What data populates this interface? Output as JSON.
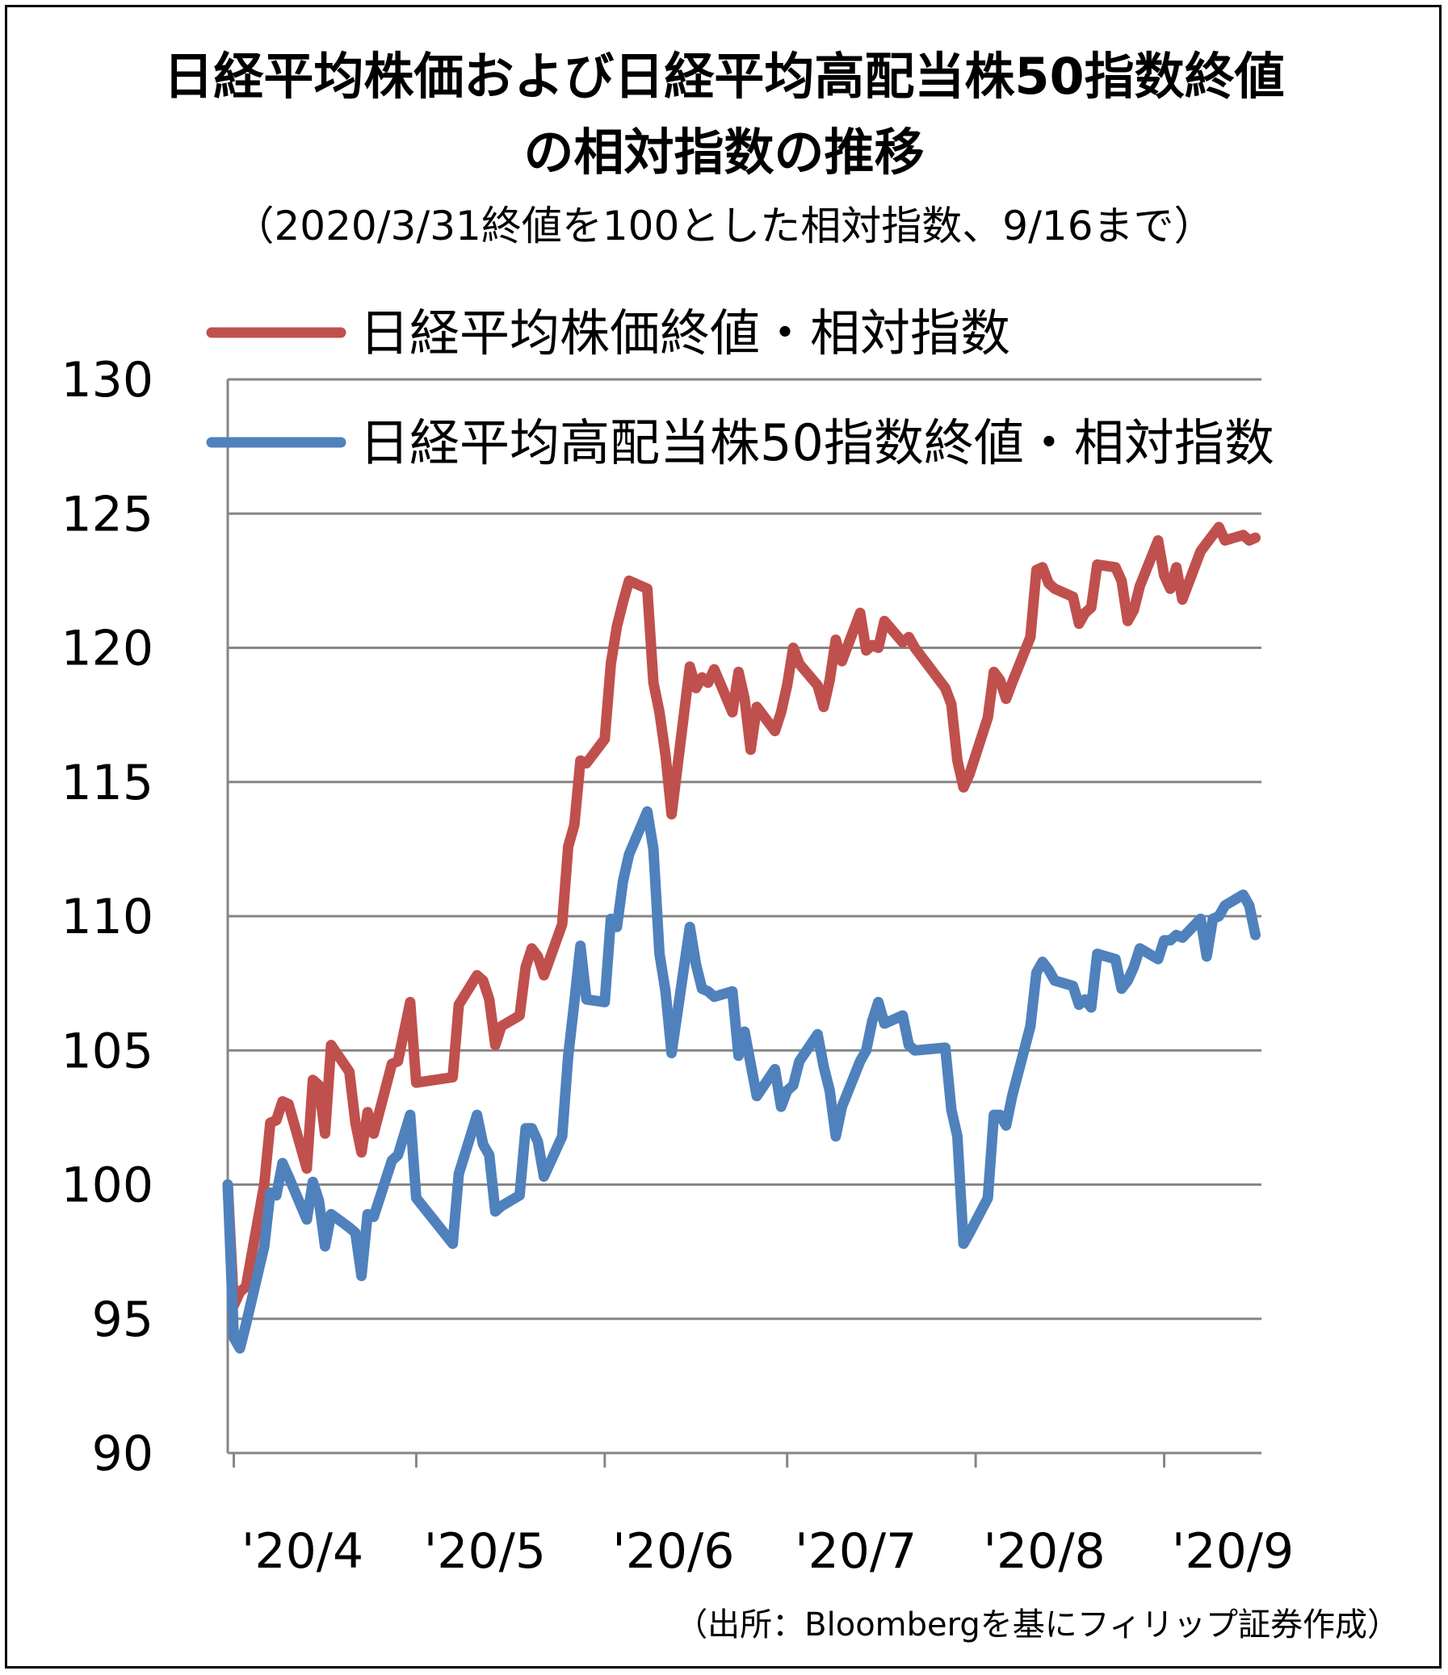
{
  "chart_data": {
    "type": "line",
    "title": "日経平均株価および日経平均高配当株50指数終値の相対指数の推移",
    "title_line1": "日経平均株価および日経平均高配当株50指数終値",
    "title_line2": "の相対指数の推移",
    "subtitle": "（2020/3/31終値を100とした相対指数、9/16まで）",
    "source": "（出所：Bloombergを基にフィリップ証券作成）",
    "ylim": [
      90,
      130
    ],
    "yticks": [
      90,
      95,
      100,
      105,
      110,
      115,
      120,
      125,
      130
    ],
    "ytick_labels": [
      "90",
      "95",
      "100",
      "105",
      "110",
      "115",
      "120",
      "125",
      "130"
    ],
    "xtick_labels": [
      "'20/4",
      "'20/5",
      "'20/6",
      "'20/7",
      "'20/8",
      "'20/9"
    ],
    "xtick_dates": [
      "2020-04-01",
      "2020-05-01",
      "2020-06-01",
      "2020-07-01",
      "2020-08-01",
      "2020-09-01"
    ],
    "grid": true,
    "legend_position": "top-left",
    "series": [
      {
        "name": "日経平均株価終値・相対指数",
        "color": "#C0504D",
        "points": [
          [
            "2020-03-31",
            100.0
          ],
          [
            "2020-04-01",
            95.5
          ],
          [
            "2020-04-02",
            96.0
          ],
          [
            "2020-04-03",
            96.2
          ],
          [
            "2020-04-06",
            100.0
          ],
          [
            "2020-04-07",
            102.3
          ],
          [
            "2020-04-08",
            102.4
          ],
          [
            "2020-04-09",
            103.1
          ],
          [
            "2020-04-10",
            103.0
          ],
          [
            "2020-04-13",
            100.6
          ],
          [
            "2020-04-14",
            103.9
          ],
          [
            "2020-04-15",
            103.7
          ],
          [
            "2020-04-16",
            101.9
          ],
          [
            "2020-04-17",
            105.2
          ],
          [
            "2020-04-20",
            104.2
          ],
          [
            "2020-04-21",
            102.3
          ],
          [
            "2020-04-22",
            101.2
          ],
          [
            "2020-04-23",
            102.7
          ],
          [
            "2020-04-24",
            101.9
          ],
          [
            "2020-04-27",
            104.5
          ],
          [
            "2020-04-28",
            104.6
          ],
          [
            "2020-04-30",
            106.8
          ],
          [
            "2020-05-01",
            103.8
          ],
          [
            "2020-05-07",
            104.0
          ],
          [
            "2020-05-08",
            106.7
          ],
          [
            "2020-05-11",
            107.8
          ],
          [
            "2020-05-12",
            107.6
          ],
          [
            "2020-05-13",
            106.9
          ],
          [
            "2020-05-14",
            105.2
          ],
          [
            "2020-05-15",
            105.9
          ],
          [
            "2020-05-18",
            106.3
          ],
          [
            "2020-05-19",
            108.1
          ],
          [
            "2020-05-20",
            108.8
          ],
          [
            "2020-05-21",
            108.5
          ],
          [
            "2020-05-22",
            107.8
          ],
          [
            "2020-05-25",
            109.7
          ],
          [
            "2020-05-26",
            112.6
          ],
          [
            "2020-05-27",
            113.4
          ],
          [
            "2020-05-28",
            115.8
          ],
          [
            "2020-05-29",
            115.7
          ],
          [
            "2020-06-01",
            116.6
          ],
          [
            "2020-06-02",
            119.4
          ],
          [
            "2020-06-03",
            120.8
          ],
          [
            "2020-06-04",
            121.7
          ],
          [
            "2020-06-05",
            122.5
          ],
          [
            "2020-06-08",
            122.2
          ],
          [
            "2020-06-09",
            118.7
          ],
          [
            "2020-06-10",
            117.6
          ],
          [
            "2020-06-11",
            116.0
          ],
          [
            "2020-06-12",
            113.8
          ],
          [
            "2020-06-15",
            119.3
          ],
          [
            "2020-06-16",
            118.5
          ],
          [
            "2020-06-17",
            118.9
          ],
          [
            "2020-06-18",
            118.7
          ],
          [
            "2020-06-19",
            119.2
          ],
          [
            "2020-06-22",
            117.6
          ],
          [
            "2020-06-23",
            119.1
          ],
          [
            "2020-06-24",
            118.1
          ],
          [
            "2020-06-25",
            116.2
          ],
          [
            "2020-06-26",
            117.8
          ],
          [
            "2020-06-29",
            116.9
          ],
          [
            "2020-06-30",
            117.6
          ],
          [
            "2020-07-01",
            118.6
          ],
          [
            "2020-07-02",
            120.0
          ],
          [
            "2020-07-03",
            119.4
          ],
          [
            "2020-07-06",
            118.6
          ],
          [
            "2020-07-07",
            117.8
          ],
          [
            "2020-07-08",
            118.8
          ],
          [
            "2020-07-09",
            120.3
          ],
          [
            "2020-07-10",
            119.5
          ],
          [
            "2020-07-13",
            121.3
          ],
          [
            "2020-07-14",
            119.9
          ],
          [
            "2020-07-15",
            120.1
          ],
          [
            "2020-07-16",
            120.0
          ],
          [
            "2020-07-17",
            121.0
          ],
          [
            "2020-07-20",
            120.2
          ],
          [
            "2020-07-21",
            120.4
          ],
          [
            "2020-07-22",
            120.0
          ],
          [
            "2020-07-27",
            118.5
          ],
          [
            "2020-07-28",
            117.9
          ],
          [
            "2020-07-29",
            115.8
          ],
          [
            "2020-07-30",
            114.8
          ],
          [
            "2020-07-31",
            115.3
          ],
          [
            "2020-08-03",
            117.4
          ],
          [
            "2020-08-04",
            119.1
          ],
          [
            "2020-08-05",
            118.8
          ],
          [
            "2020-08-06",
            118.1
          ],
          [
            "2020-08-07",
            118.7
          ],
          [
            "2020-08-10",
            120.4
          ],
          [
            "2020-08-11",
            122.9
          ],
          [
            "2020-08-12",
            123.0
          ],
          [
            "2020-08-13",
            122.4
          ],
          [
            "2020-08-14",
            122.2
          ],
          [
            "2020-08-17",
            121.9
          ],
          [
            "2020-08-18",
            120.9
          ],
          [
            "2020-08-19",
            121.3
          ],
          [
            "2020-08-20",
            121.5
          ],
          [
            "2020-08-21",
            123.1
          ],
          [
            "2020-08-24",
            123.0
          ],
          [
            "2020-08-25",
            122.5
          ],
          [
            "2020-08-26",
            121.0
          ],
          [
            "2020-08-27",
            121.4
          ],
          [
            "2020-08-28",
            122.3
          ],
          [
            "2020-08-31",
            124.0
          ],
          [
            "2020-09-01",
            122.7
          ],
          [
            "2020-09-02",
            122.2
          ],
          [
            "2020-09-03",
            123.0
          ],
          [
            "2020-09-04",
            121.8
          ],
          [
            "2020-09-07",
            123.6
          ],
          [
            "2020-09-08",
            123.9
          ],
          [
            "2020-09-09",
            124.2
          ],
          [
            "2020-09-10",
            124.5
          ],
          [
            "2020-09-11",
            124.0
          ],
          [
            "2020-09-14",
            124.2
          ],
          [
            "2020-09-15",
            124.0
          ],
          [
            "2020-09-16",
            124.1
          ]
        ]
      },
      {
        "name": "日経平均高配当株50指数終値・相対指数",
        "color": "#4F81BD",
        "points": [
          [
            "2020-03-31",
            100.0
          ],
          [
            "2020-04-01",
            94.3
          ],
          [
            "2020-04-02",
            93.9
          ],
          [
            "2020-04-03",
            94.8
          ],
          [
            "2020-04-06",
            97.7
          ],
          [
            "2020-04-07",
            99.7
          ],
          [
            "2020-04-08",
            99.6
          ],
          [
            "2020-04-09",
            100.8
          ],
          [
            "2020-04-10",
            100.3
          ],
          [
            "2020-04-13",
            98.7
          ],
          [
            "2020-04-14",
            100.1
          ],
          [
            "2020-04-15",
            99.4
          ],
          [
            "2020-04-16",
            97.7
          ],
          [
            "2020-04-17",
            98.9
          ],
          [
            "2020-04-20",
            98.4
          ],
          [
            "2020-04-21",
            98.2
          ],
          [
            "2020-04-22",
            96.6
          ],
          [
            "2020-04-23",
            98.9
          ],
          [
            "2020-04-24",
            98.8
          ],
          [
            "2020-04-27",
            100.9
          ],
          [
            "2020-04-28",
            101.1
          ],
          [
            "2020-04-30",
            102.6
          ],
          [
            "2020-05-01",
            99.5
          ],
          [
            "2020-05-07",
            97.8
          ],
          [
            "2020-05-08",
            100.4
          ],
          [
            "2020-05-11",
            102.6
          ],
          [
            "2020-05-12",
            101.5
          ],
          [
            "2020-05-13",
            101.1
          ],
          [
            "2020-05-14",
            99.0
          ],
          [
            "2020-05-15",
            99.2
          ],
          [
            "2020-05-18",
            99.6
          ],
          [
            "2020-05-19",
            102.1
          ],
          [
            "2020-05-20",
            102.1
          ],
          [
            "2020-05-21",
            101.6
          ],
          [
            "2020-05-22",
            100.3
          ],
          [
            "2020-05-25",
            101.8
          ],
          [
            "2020-05-26",
            104.8
          ],
          [
            "2020-05-27",
            106.8
          ],
          [
            "2020-05-28",
            108.9
          ],
          [
            "2020-05-29",
            106.9
          ],
          [
            "2020-06-01",
            106.8
          ],
          [
            "2020-06-02",
            109.9
          ],
          [
            "2020-06-03",
            109.6
          ],
          [
            "2020-06-04",
            111.3
          ],
          [
            "2020-06-05",
            112.3
          ],
          [
            "2020-06-08",
            113.9
          ],
          [
            "2020-06-09",
            112.5
          ],
          [
            "2020-06-10",
            108.6
          ],
          [
            "2020-06-11",
            107.2
          ],
          [
            "2020-06-12",
            104.9
          ],
          [
            "2020-06-15",
            109.6
          ],
          [
            "2020-06-16",
            108.2
          ],
          [
            "2020-06-17",
            107.3
          ],
          [
            "2020-06-18",
            107.2
          ],
          [
            "2020-06-19",
            107.0
          ],
          [
            "2020-06-22",
            107.2
          ],
          [
            "2020-06-23",
            104.8
          ],
          [
            "2020-06-24",
            105.7
          ],
          [
            "2020-06-25",
            104.5
          ],
          [
            "2020-06-26",
            103.3
          ],
          [
            "2020-06-29",
            104.3
          ],
          [
            "2020-06-30",
            102.9
          ],
          [
            "2020-07-01",
            103.5
          ],
          [
            "2020-07-02",
            103.7
          ],
          [
            "2020-07-03",
            104.6
          ],
          [
            "2020-07-06",
            105.6
          ],
          [
            "2020-07-07",
            104.4
          ],
          [
            "2020-07-08",
            103.5
          ],
          [
            "2020-07-09",
            101.8
          ],
          [
            "2020-07-10",
            102.9
          ],
          [
            "2020-07-13",
            104.6
          ],
          [
            "2020-07-14",
            105.0
          ],
          [
            "2020-07-15",
            106.1
          ],
          [
            "2020-07-16",
            106.8
          ],
          [
            "2020-07-17",
            106.0
          ],
          [
            "2020-07-20",
            106.3
          ],
          [
            "2020-07-21",
            105.2
          ],
          [
            "2020-07-22",
            105.0
          ],
          [
            "2020-07-27",
            105.1
          ],
          [
            "2020-07-28",
            102.8
          ],
          [
            "2020-07-29",
            101.8
          ],
          [
            "2020-07-30",
            97.8
          ],
          [
            "2020-07-31",
            98.2
          ],
          [
            "2020-08-03",
            99.5
          ],
          [
            "2020-08-04",
            102.6
          ],
          [
            "2020-08-05",
            102.6
          ],
          [
            "2020-08-06",
            102.2
          ],
          [
            "2020-08-07",
            103.3
          ],
          [
            "2020-08-10",
            105.9
          ],
          [
            "2020-08-11",
            107.9
          ],
          [
            "2020-08-12",
            108.3
          ],
          [
            "2020-08-13",
            108.0
          ],
          [
            "2020-08-14",
            107.6
          ],
          [
            "2020-08-17",
            107.4
          ],
          [
            "2020-08-18",
            106.7
          ],
          [
            "2020-08-19",
            106.9
          ],
          [
            "2020-08-20",
            106.6
          ],
          [
            "2020-08-21",
            108.6
          ],
          [
            "2020-08-24",
            108.4
          ],
          [
            "2020-08-25",
            107.3
          ],
          [
            "2020-08-26",
            107.6
          ],
          [
            "2020-08-27",
            108.1
          ],
          [
            "2020-08-28",
            108.8
          ],
          [
            "2020-08-31",
            108.4
          ],
          [
            "2020-09-01",
            109.1
          ],
          [
            "2020-09-02",
            109.1
          ],
          [
            "2020-09-03",
            109.3
          ],
          [
            "2020-09-04",
            109.2
          ],
          [
            "2020-09-07",
            109.9
          ],
          [
            "2020-09-08",
            108.5
          ],
          [
            "2020-09-09",
            109.9
          ],
          [
            "2020-09-10",
            110.0
          ],
          [
            "2020-09-11",
            110.4
          ],
          [
            "2020-09-14",
            110.8
          ],
          [
            "2020-09-15",
            110.4
          ],
          [
            "2020-09-16",
            109.3
          ]
        ]
      }
    ]
  }
}
